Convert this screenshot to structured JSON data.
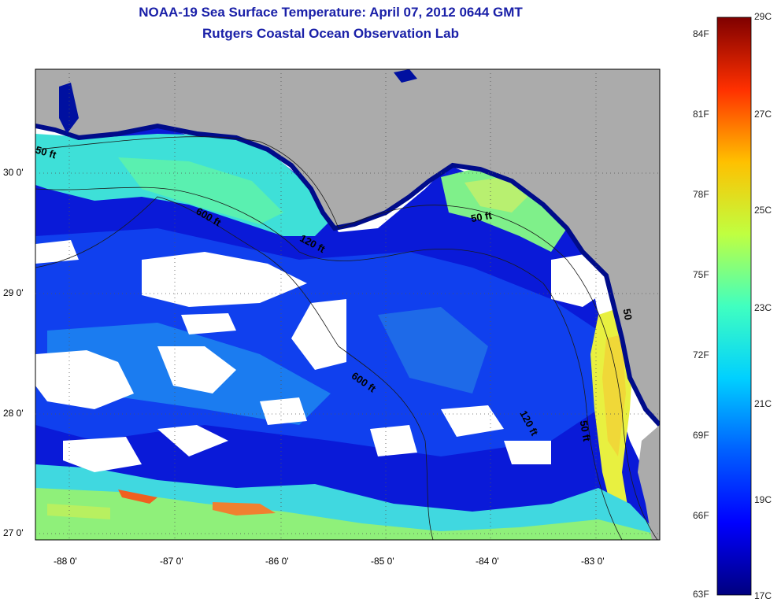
{
  "title": "NOAA-19 Sea Surface Temperature:  April 07, 2012 0644 GMT",
  "subtitle": "Rutgers Coastal Ocean Observation Lab",
  "axes": {
    "x_ticks": [
      "-88 0'",
      "-87 0'",
      "-86 0'",
      "-85 0'",
      "-84 0'",
      "-83 0'"
    ],
    "y_ticks": [
      "30 0'",
      "29 0'",
      "28 0'",
      "27 0'"
    ]
  },
  "contour_labels": [
    "50 ft",
    "600 ft",
    "120 ft",
    "50 ft",
    "600 ft",
    "120 ft",
    "50 ft",
    "50"
  ],
  "colorbar": {
    "fahrenheit": [
      "84F",
      "81F",
      "78F",
      "75F",
      "72F",
      "69F",
      "66F",
      "63F"
    ],
    "celsius": [
      "29C",
      "27C",
      "25C",
      "23C",
      "21C",
      "19C",
      "17C"
    ]
  },
  "colors": {
    "land": "#ababab",
    "title": "#1a20a8",
    "no_data": "#ffffff",
    "colormap": [
      "#00007f",
      "#0000ff",
      "#007fff",
      "#00ffff",
      "#7fff7f",
      "#ffff00",
      "#ff7f00",
      "#ff0000",
      "#7f0000"
    ]
  }
}
